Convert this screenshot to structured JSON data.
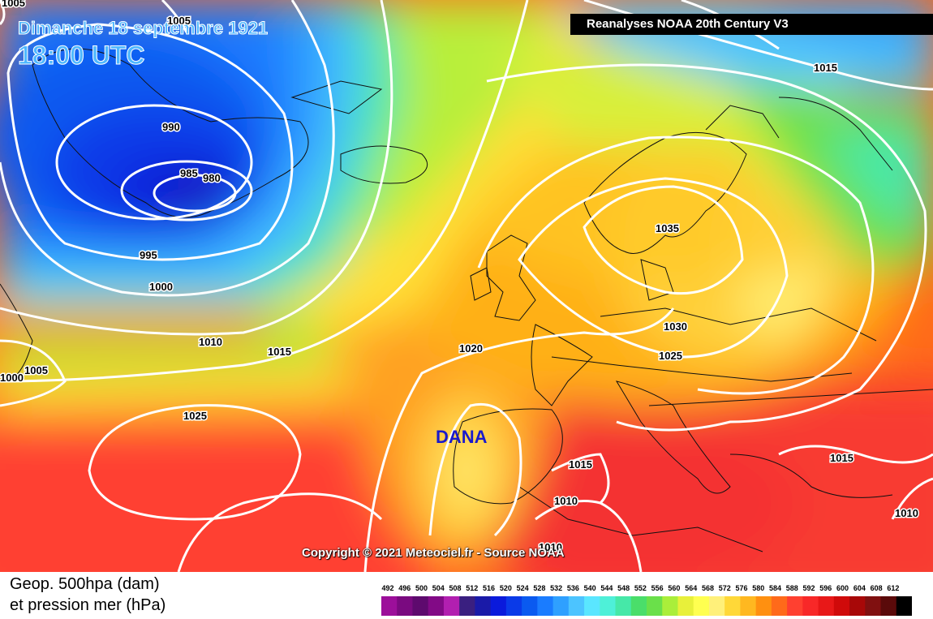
{
  "header": {
    "date": "Dimanche 18 septembre 1921",
    "time": "18:00 UTC",
    "source": "Reanalyses NOAA 20th Century V3"
  },
  "map": {
    "isobar_labels": [
      {
        "text": "1005",
        "pos": "top-left"
      },
      {
        "text": "1005",
        "pos": "top"
      },
      {
        "text": "990",
        "pos": "north-atlantic-low"
      },
      {
        "text": "985",
        "pos": "low-center"
      },
      {
        "text": "980",
        "pos": "low-center"
      },
      {
        "text": "995",
        "pos": "low-south"
      },
      {
        "text": "1000",
        "pos": "low-south"
      },
      {
        "text": "1010",
        "pos": "mid-atlantic"
      },
      {
        "text": "1015",
        "pos": "mid-atlantic"
      },
      {
        "text": "1000",
        "pos": "left-edge"
      },
      {
        "text": "1005",
        "pos": "left-edge"
      },
      {
        "text": "1025",
        "pos": "azores-high"
      },
      {
        "text": "1020",
        "pos": "biscay"
      },
      {
        "text": "1015",
        "pos": "top-right"
      },
      {
        "text": "1035",
        "pos": "scandinavia-high"
      },
      {
        "text": "1030",
        "pos": "central-europe"
      },
      {
        "text": "1025",
        "pos": "central-europe"
      },
      {
        "text": "1015",
        "pos": "iberia-east"
      },
      {
        "text": "1010",
        "pos": "iberia-south"
      },
      {
        "text": "1010",
        "pos": "bottom"
      },
      {
        "text": "1015",
        "pos": "balkans"
      },
      {
        "text": "1010",
        "pos": "east-med"
      }
    ],
    "annotation": "DANA",
    "copyright": "Copyright © 2021 Meteociel.fr - Source NOAA"
  },
  "legend": {
    "title_line1": "Geop. 500hpa (dam)",
    "title_line2": "et pression mer (hPa)",
    "values": [
      "492",
      "496",
      "500",
      "504",
      "508",
      "512",
      "516",
      "520",
      "524",
      "528",
      "532",
      "536",
      "540",
      "544",
      "548",
      "552",
      "556",
      "560",
      "564",
      "568",
      "572",
      "576",
      "580",
      "584",
      "588",
      "592",
      "596",
      "600",
      "604",
      "608",
      "612"
    ],
    "colors": [
      "#9c0f9a",
      "#7a0a80",
      "#5e0a6e",
      "#820a86",
      "#b21fb0",
      "#3a1f80",
      "#1a1aa8",
      "#0a1adc",
      "#0a3ae8",
      "#0a5af0",
      "#1a7cff",
      "#2fa0ff",
      "#4cc4ff",
      "#5ae6ff",
      "#4ef0d8",
      "#46e8a8",
      "#4ade6a",
      "#6ae04a",
      "#aaee3a",
      "#e8f03a",
      "#ffff50",
      "#fff07a",
      "#ffd838",
      "#ffb820",
      "#ff9010",
      "#ff6a1a",
      "#ff4030",
      "#f82828",
      "#e81818",
      "#d00a0a",
      "#a80808",
      "#801010",
      "#5a0a0a",
      "#000000"
    ]
  }
}
